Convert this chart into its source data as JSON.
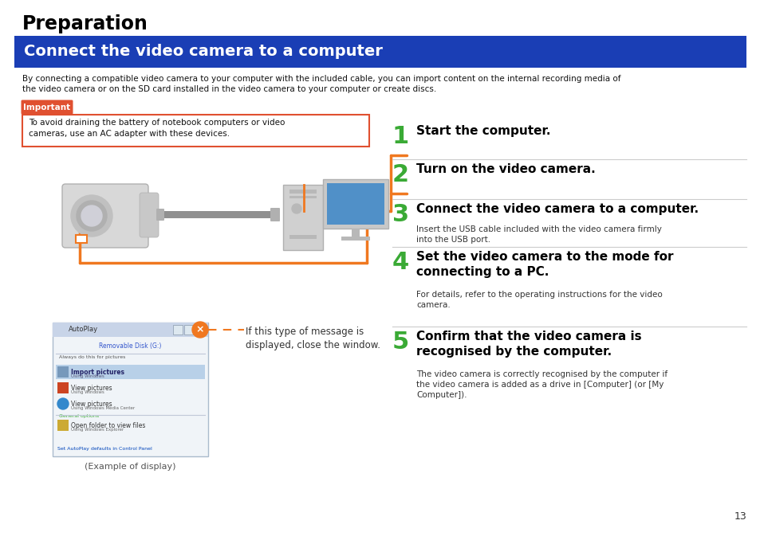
{
  "title": "Preparation",
  "subtitle": "Connect the video camera to a computer",
  "subtitle_bg": "#1a3eb5",
  "subtitle_text_color": "#ffffff",
  "body_text": "By connecting a compatible video camera to your computer with the included cable, you can import content on the internal recording media of\nthe video camera or on the SD card installed in the video camera to your computer or create discs.",
  "important_label": "Important",
  "important_label_bg": "#e05030",
  "important_text": "To avoid draining the battery of notebook computers or video\ncameras, use an AC adapter with these devices.",
  "important_border": "#e05030",
  "steps": [
    {
      "num": "1",
      "heading": "Start the computer.",
      "detail": "",
      "detail2": ""
    },
    {
      "num": "2",
      "heading": "Turn on the video camera.",
      "detail": "",
      "detail2": ""
    },
    {
      "num": "3",
      "heading": "Connect the video camera to a computer.",
      "detail": "Insert the USB cable included with the video camera firmly",
      "detail2": "into the USB port."
    },
    {
      "num": "4",
      "heading": "Set the video camera to the mode for",
      "heading2": "connecting to a PC.",
      "detail": "For details, refer to the operating instructions for the video",
      "detail2": "camera."
    },
    {
      "num": "5",
      "heading": "Confirm that the video camera is",
      "heading2": "recognised by the computer.",
      "detail": "The video camera is correctly recognised by the computer if",
      "detail2": "the video camera is added as a drive in [Computer] (or [My",
      "detail3": "Computer])."
    }
  ],
  "step_num_color": "#3aaa35",
  "step_heading_color": "#000000",
  "step_detail_color": "#333333",
  "orange_color": "#f07820",
  "autoplay_caption": "(Example of display)",
  "autoplay_message": "If this type of message is\ndisplayed, close the window.",
  "page_number": "13",
  "bg_color": "#ffffff"
}
